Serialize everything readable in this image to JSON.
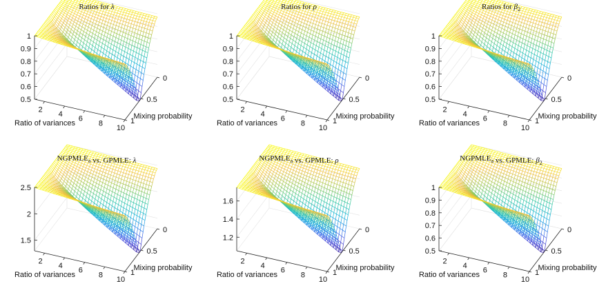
{
  "chart_data": [
    {
      "type": "surface",
      "title": "Ratios for λ",
      "title_parts": [
        {
          "t": "Ratios for "
        },
        {
          "t": "λ",
          "i": true
        }
      ],
      "xlabel": "Ratio of variances",
      "ylabel": "Mixing probability",
      "x_ticks": [
        2,
        4,
        6,
        8,
        10
      ],
      "y_ticks": [
        1,
        0.5,
        0
      ],
      "z_ticks": [
        0.5,
        0.6,
        0.7,
        0.8,
        0.9,
        1
      ],
      "x_range": [
        1,
        10
      ],
      "y_range": [
        0,
        1
      ],
      "zlim": [
        0.5,
        1
      ],
      "z_min": 0.5,
      "z_max": 1,
      "plateau": 1,
      "colormap": "parula"
    },
    {
      "type": "surface",
      "title": "Ratios for ρ",
      "title_parts": [
        {
          "t": "Ratios for "
        },
        {
          "t": "ρ",
          "i": true
        }
      ],
      "xlabel": "Ratio of variances",
      "ylabel": "Mixing probability",
      "x_ticks": [
        2,
        4,
        6,
        8,
        10
      ],
      "y_ticks": [
        1,
        0.5,
        0
      ],
      "z_ticks": [
        0.5,
        0.6,
        0.7,
        0.8,
        0.9,
        1
      ],
      "x_range": [
        1,
        10
      ],
      "y_range": [
        0,
        1
      ],
      "zlim": [
        0.5,
        1
      ],
      "z_min": 0.5,
      "z_max": 1,
      "plateau": 1,
      "colormap": "parula"
    },
    {
      "type": "surface",
      "title": "Ratios for β2",
      "title_parts": [
        {
          "t": "Ratios for "
        },
        {
          "t": "β",
          "i": true
        },
        {
          "t": "2",
          "sub": true
        }
      ],
      "xlabel": "Ratio of variances",
      "ylabel": "Mixing probability",
      "x_ticks": [
        2,
        4,
        6,
        8,
        10
      ],
      "y_ticks": [
        1,
        0.5,
        0
      ],
      "z_ticks": [
        0.5,
        0.6,
        0.7,
        0.8,
        0.9,
        1
      ],
      "x_range": [
        1,
        10
      ],
      "y_range": [
        0,
        1
      ],
      "zlim": [
        0.5,
        1
      ],
      "z_min": 0.5,
      "z_max": 1,
      "plateau": 1,
      "colormap": "parula"
    },
    {
      "type": "surface",
      "title": "NGPMLEa vs. GPMLE: λ",
      "title_parts": [
        {
          "t": "NGPMLE"
        },
        {
          "t": "a",
          "sub": true
        },
        {
          "t": " vs. GPMLE: "
        },
        {
          "t": "λ",
          "i": true
        }
      ],
      "xlabel": "Ratio of variances",
      "ylabel": "Mixing probability",
      "x_ticks": [
        2,
        4,
        6,
        8,
        10
      ],
      "y_ticks": [
        1,
        0.5,
        0
      ],
      "z_ticks": [
        1.5,
        2,
        2.5
      ],
      "x_range": [
        1,
        10
      ],
      "y_range": [
        0,
        1
      ],
      "zlim": [
        1.3,
        2.5
      ],
      "z_min": 1.3,
      "z_max": 2.5,
      "plateau": 2.5,
      "colormap": "parula"
    },
    {
      "type": "surface",
      "title": "NGPMLEa vs. GPMLE: ρ",
      "title_parts": [
        {
          "t": "NGPMLE"
        },
        {
          "t": "a",
          "sub": true
        },
        {
          "t": " vs. GPMLE: "
        },
        {
          "t": "ρ",
          "i": true
        }
      ],
      "xlabel": "Ratio of variances",
      "ylabel": "Mixing probability",
      "x_ticks": [
        2,
        4,
        6,
        8,
        10
      ],
      "y_ticks": [
        1,
        0.5,
        0
      ],
      "z_ticks": [
        1.2,
        1.4,
        1.6
      ],
      "x_range": [
        1,
        10
      ],
      "y_range": [
        0,
        1
      ],
      "zlim": [
        1.05,
        1.75
      ],
      "z_min": 1.05,
      "z_max": 1.75,
      "plateau": 1.75,
      "colormap": "parula"
    },
    {
      "type": "surface",
      "title": "NGPMLEa vs. GPMLE: β2",
      "title_parts": [
        {
          "t": "NGPMLE"
        },
        {
          "t": "a",
          "sub": true
        },
        {
          "t": " vs. GPMLE: "
        },
        {
          "t": "β",
          "i": true
        },
        {
          "t": "2",
          "sub": true
        }
      ],
      "xlabel": "Ratio of variances",
      "ylabel": "Mixing probability",
      "x_ticks": [
        2,
        4,
        6,
        8,
        10
      ],
      "y_ticks": [
        1,
        0.5,
        0
      ],
      "z_ticks": [
        0.5,
        0.6,
        0.7,
        0.8,
        0.9,
        1
      ],
      "x_range": [
        1,
        10
      ],
      "y_range": [
        0,
        1
      ],
      "zlim": [
        0.5,
        1
      ],
      "z_min": 0.5,
      "z_max": 1,
      "plateau": 1,
      "colormap": "parula"
    }
  ]
}
